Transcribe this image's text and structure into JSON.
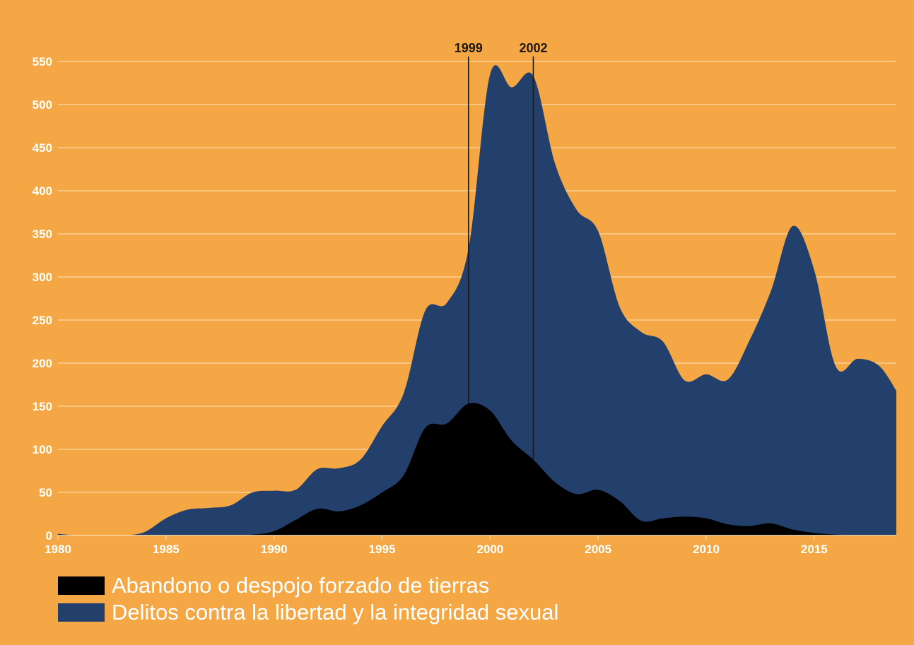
{
  "chart_data": {
    "type": "area",
    "stacked": true,
    "x": [
      1980,
      1981,
      1982,
      1983,
      1984,
      1985,
      1986,
      1987,
      1988,
      1989,
      1990,
      1991,
      1992,
      1993,
      1994,
      1995,
      1996,
      1997,
      1998,
      1999,
      2000,
      2001,
      2002,
      2003,
      2004,
      2005,
      2006,
      2007,
      2008,
      2009,
      2010,
      2011,
      2012,
      2013,
      2014,
      2015,
      2016,
      2017,
      2018,
      2018.8
    ],
    "series": [
      {
        "name": "Abandono o despojo forzado de tierras",
        "color": "#000000",
        "values": [
          1,
          0,
          0,
          0,
          0,
          0,
          0,
          0,
          0,
          1,
          5,
          18,
          31,
          28,
          35,
          50,
          70,
          125,
          130,
          153,
          145,
          110,
          88,
          62,
          48,
          53,
          40,
          17,
          20,
          22,
          20,
          13,
          11,
          14,
          7,
          3,
          1,
          0,
          0,
          0
        ]
      },
      {
        "name": "Delitos contra la libertad y la integridad sexual",
        "color": "#233F6C",
        "values": [
          1,
          0,
          0,
          0,
          4,
          20,
          30,
          32,
          35,
          49,
          47,
          35,
          46,
          50,
          53,
          77,
          95,
          136,
          140,
          180,
          390,
          410,
          445,
          370,
          330,
          300,
          225,
          219,
          205,
          158,
          167,
          168,
          215,
          270,
          352,
          305,
          195,
          205,
          197,
          168
        ]
      }
    ],
    "xticks": [
      1980,
      1985,
      1990,
      1995,
      2000,
      2005,
      2010,
      2015
    ],
    "yticks": [
      0,
      50,
      100,
      150,
      200,
      250,
      300,
      350,
      400,
      450,
      500,
      550
    ],
    "xlim": [
      1980,
      2018.8
    ],
    "ylim": [
      0,
      550
    ],
    "grid": true,
    "legend_position": "bottom-left",
    "annotations": [
      {
        "label": "1999",
        "x": 1999,
        "color": "#1A1A1A"
      },
      {
        "label": "2002",
        "x": 2002,
        "color": "#1A1A1A"
      }
    ]
  }
}
